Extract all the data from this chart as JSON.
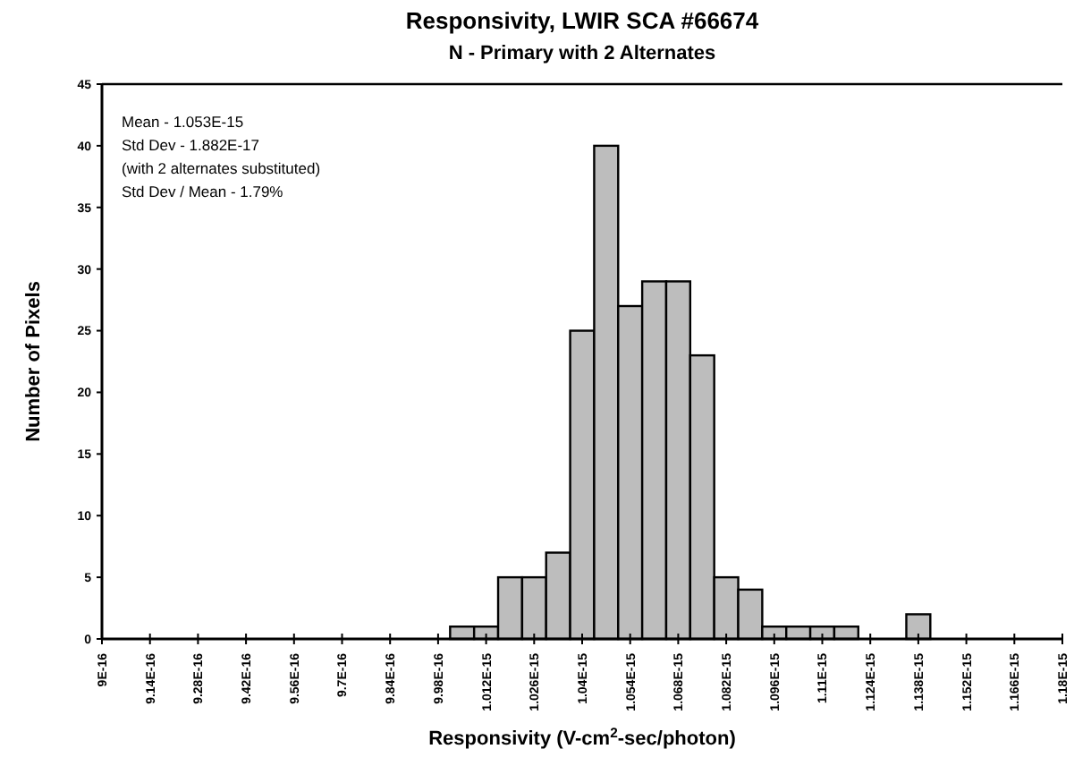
{
  "chart_data": {
    "type": "histogram",
    "title": "Responsivity, LWIR SCA #66674",
    "subtitle": "N - Primary with 2 Alternates",
    "xlabel": "Responsivity (V-cm$^{2}$-sec/photon)",
    "ylabel": "Number of Pixels",
    "annotations": [
      "Mean - 1.053E-15",
      "Std Dev - 1.882E-17",
      "(with 2 alternates substituted)",
      "Std Dev / Mean - 1.79%"
    ],
    "bins": [
      1.0015e-15,
      1.0085e-15,
      1.0155e-15,
      1.0225e-15,
      1.0295e-15,
      1.0365e-15,
      1.0435e-15,
      1.0505e-15,
      1.0575e-15,
      1.0645e-15,
      1.0715e-15,
      1.0785e-15,
      1.0855e-15,
      1.0925e-15,
      1.0995e-15,
      1.1065e-15,
      1.1135e-15,
      1.1205e-15,
      1.1275e-15,
      1.1345e-15,
      1.1415e-15
    ],
    "values": [
      1,
      1,
      5,
      5,
      7,
      25,
      40,
      27,
      29,
      29,
      23,
      5,
      4,
      1,
      1,
      1,
      1,
      0,
      0,
      2
    ],
    "color": "#bdbdbd",
    "xlim": [
      9e-16,
      1.18e-15
    ],
    "xticks": [
      {
        "value": 9e-16,
        "label": "9E-16"
      },
      {
        "value": 9.14e-16,
        "label": "9.14E-16"
      },
      {
        "value": 9.28e-16,
        "label": "9.28E-16"
      },
      {
        "value": 9.42e-16,
        "label": "9.42E-16"
      },
      {
        "value": 9.56e-16,
        "label": "9.56E-16"
      },
      {
        "value": 9.7e-16,
        "label": "9.7E-16"
      },
      {
        "value": 9.84e-16,
        "label": "9.84E-16"
      },
      {
        "value": 9.98e-16,
        "label": "9.98E-16"
      },
      {
        "value": 1.012e-15,
        "label": "1.012E-15"
      },
      {
        "value": 1.026e-15,
        "label": "1.026E-15"
      },
      {
        "value": 1.04e-15,
        "label": "1.04E-15"
      },
      {
        "value": 1.054e-15,
        "label": "1.054E-15"
      },
      {
        "value": 1.068e-15,
        "label": "1.068E-15"
      },
      {
        "value": 1.082e-15,
        "label": "1.082E-15"
      },
      {
        "value": 1.096e-15,
        "label": "1.096E-15"
      },
      {
        "value": 1.11e-15,
        "label": "1.11E-15"
      },
      {
        "value": 1.124e-15,
        "label": "1.124E-15"
      },
      {
        "value": 1.138e-15,
        "label": "1.138E-15"
      },
      {
        "value": 1.152e-15,
        "label": "1.152E-15"
      },
      {
        "value": 1.166e-15,
        "label": "1.166E-15"
      },
      {
        "value": 1.18e-15,
        "label": "1.18E-15"
      }
    ],
    "ylim": [
      0,
      45
    ],
    "yticks": [
      0,
      5,
      10,
      15,
      20,
      25,
      30,
      35,
      40,
      45
    ],
    "grid": false
  }
}
